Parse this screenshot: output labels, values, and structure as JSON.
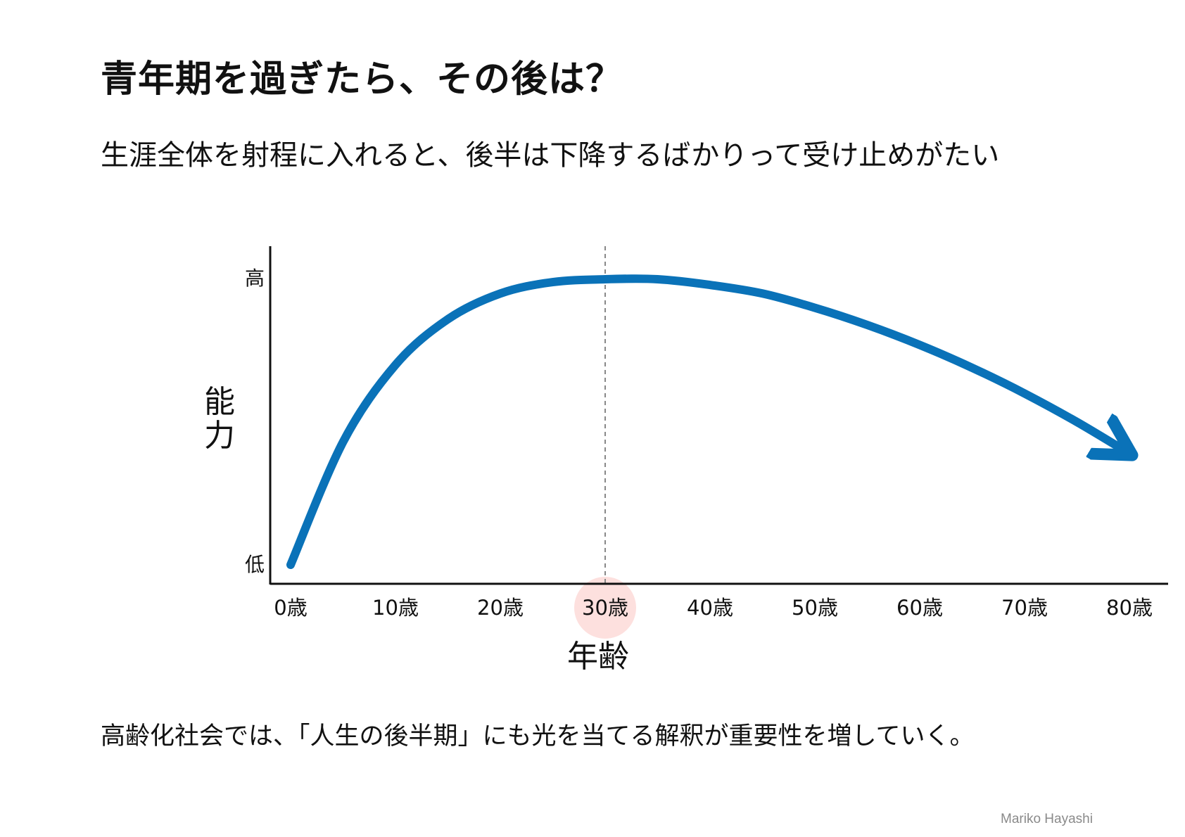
{
  "title": "青年期を過ぎたら、その後は？",
  "subtitle": "生涯全体を射程に入れると、後半は下降するばかりって受け止めがたい",
  "caption": "高齢化社会では、「人生の後半期」にも光を当てる解釈が重要性を増していく。",
  "credit": "Mariko Hayashi",
  "colors": {
    "curve": "#0a72b8",
    "highlight": "#fde0de",
    "axis": "#111111",
    "guide": "#888888"
  },
  "chart_data": {
    "type": "line",
    "xlabel": "年齢",
    "ylabel": "能力",
    "x": [
      0,
      10,
      20,
      30,
      40,
      50,
      60,
      70,
      80
    ],
    "x_ticks": [
      "0歳",
      "10歳",
      "20歳",
      "30歳",
      "40歳",
      "50歳",
      "60歳",
      "70歳",
      "80歳"
    ],
    "y_ticks": [
      "低",
      "高"
    ],
    "xlim": [
      0,
      80
    ],
    "ylim": [
      0,
      100
    ],
    "series": [
      {
        "x": [
          0,
          5,
          10,
          15,
          20,
          25,
          30,
          35,
          40,
          45,
          50,
          55,
          60,
          65,
          70,
          75,
          80
        ],
        "values": [
          0,
          43,
          70,
          86,
          95,
          99,
          100,
          100,
          98,
          95,
          90,
          84,
          77,
          69,
          60,
          50,
          39
        ]
      }
    ],
    "peak_marker": {
      "x": 30,
      "label": "30歳"
    },
    "grid": false,
    "legend": "none"
  }
}
